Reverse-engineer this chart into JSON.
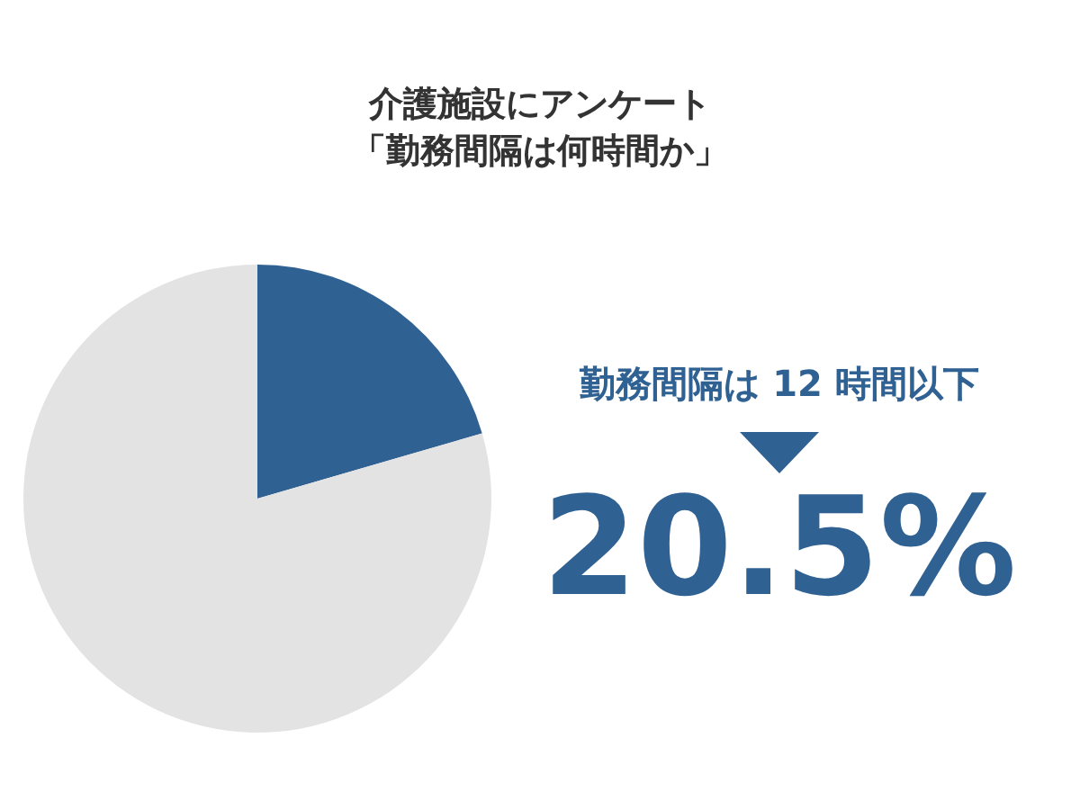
{
  "chart_data": {
    "type": "pie",
    "title": "介護施設にアンケート",
    "subtitle": "「勤務間隔は何時間か」",
    "categories": [
      "勤務間隔は 12 時間以下",
      null
    ],
    "values": [
      20.5,
      79.5
    ],
    "colors": [
      "#2f6193",
      "#e3e3e3"
    ],
    "value_labels": [
      "20.5%",
      null
    ]
  }
}
